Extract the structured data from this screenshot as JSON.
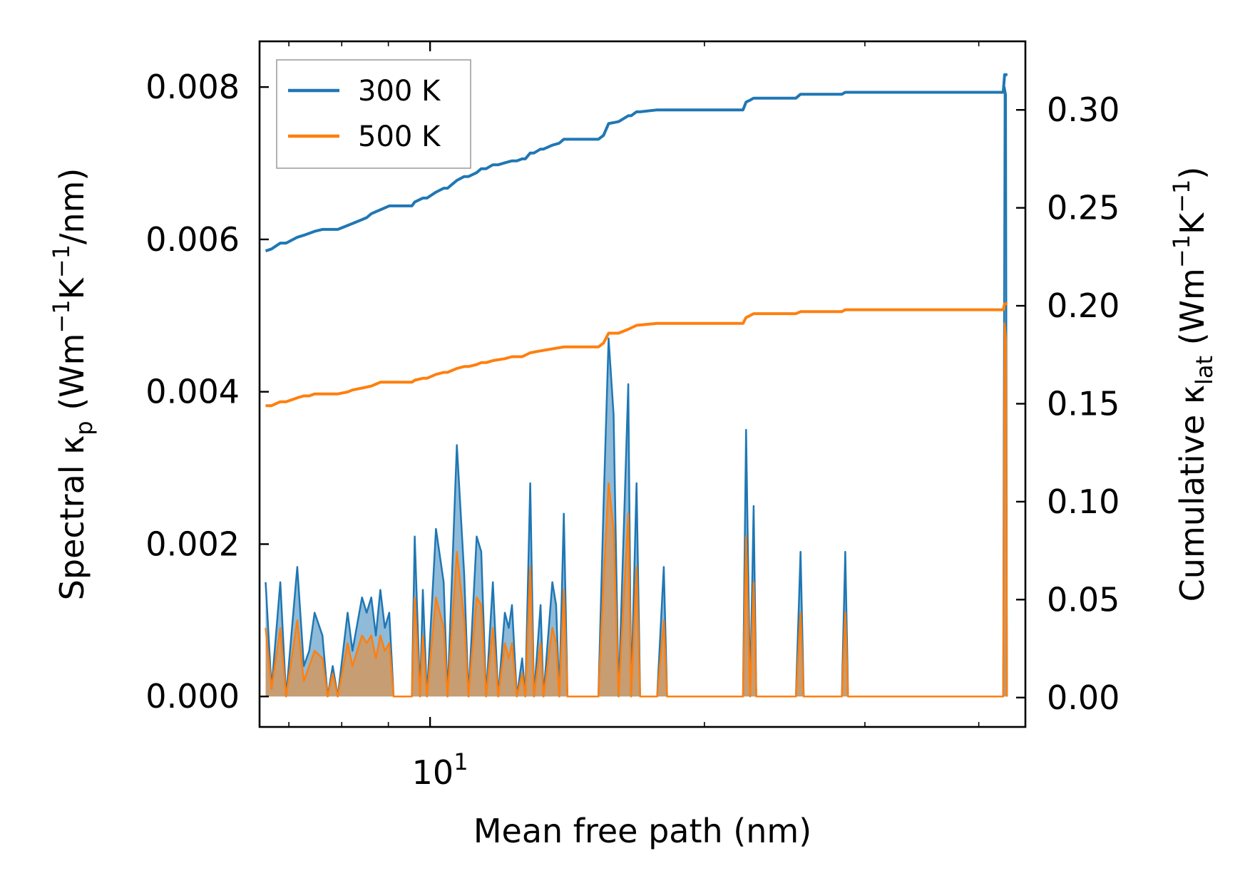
{
  "chart_data": {
    "type": "line",
    "xlabel": "Mean free path (nm)",
    "ylabel_left": {
      "main": "Spectral κ",
      "sub": "p",
      "unit_open": " (Wm",
      "sup1": "−1",
      "unit_mid": "K",
      "sup2": "−1",
      "unit_close": "/nm)"
    },
    "ylabel_right": {
      "main": "Cumulative κ",
      "sub": "lat",
      "unit_open": " (Wm",
      "sup1": "−1",
      "unit_mid": "K",
      "sup2": "−1",
      "unit_close": ")"
    },
    "x_scale": "log",
    "xlim": [
      6.5,
      45
    ],
    "x_ticks": [
      {
        "value": 10,
        "base": "10",
        "exp": "1"
      }
    ],
    "ylim_left": [
      -0.0004,
      0.0086
    ],
    "ylim_right": [
      -0.015,
      0.335
    ],
    "yticks_left": [
      "0.000",
      "0.002",
      "0.004",
      "0.006",
      "0.008"
    ],
    "yticks_right": [
      "0.00",
      "0.05",
      "0.10",
      "0.15",
      "0.20",
      "0.25",
      "0.30"
    ],
    "legend": {
      "position": "top-left",
      "entries": [
        "300 K",
        "500 K"
      ]
    },
    "colors": {
      "s300": "#1f77b4",
      "s500": "#ff7f0e"
    },
    "spectral": [
      {
        "name": "300 K",
        "points": [
          [
            6.6,
            0.0015
          ],
          [
            6.7,
            0.0001
          ],
          [
            6.85,
            0.0015
          ],
          [
            6.95,
            0
          ],
          [
            7.15,
            0.0017
          ],
          [
            7.27,
            0.0004
          ],
          [
            7.37,
            0.0006
          ],
          [
            7.47,
            0.0011
          ],
          [
            7.62,
            0.0008
          ],
          [
            7.72,
            0
          ],
          [
            7.82,
            0.0004
          ],
          [
            7.92,
            0
          ],
          [
            8.12,
            0.0011
          ],
          [
            8.22,
            0.0006
          ],
          [
            8.42,
            0.0013
          ],
          [
            8.52,
            0.0011
          ],
          [
            8.62,
            0.0013
          ],
          [
            8.72,
            0.0008
          ],
          [
            8.82,
            0.0014
          ],
          [
            8.92,
            0.0009
          ],
          [
            9.02,
            0.0011
          ],
          [
            9.12,
            0
          ],
          [
            9.55,
            0
          ],
          [
            9.62,
            0.0021
          ],
          [
            9.75,
            0
          ],
          [
            9.82,
            0.0014
          ],
          [
            9.92,
            0
          ],
          [
            10.15,
            0.0022
          ],
          [
            10.35,
            0.0015
          ],
          [
            10.45,
            0
          ],
          [
            10.7,
            0.0033
          ],
          [
            10.9,
            0.0016
          ],
          [
            11.02,
            0
          ],
          [
            11.25,
            0.0021
          ],
          [
            11.38,
            0.0019
          ],
          [
            11.52,
            0
          ],
          [
            11.72,
            0.0015
          ],
          [
            11.88,
            0
          ],
          [
            12.08,
            0.0011
          ],
          [
            12.2,
            0.0009
          ],
          [
            12.3,
            0.0012
          ],
          [
            12.45,
            0
          ],
          [
            12.62,
            0.0005
          ],
          [
            12.72,
            0
          ],
          [
            12.88,
            0.0028
          ],
          [
            13.0,
            0
          ],
          [
            13.22,
            0.0012
          ],
          [
            13.32,
            0
          ],
          [
            13.62,
            0.0015
          ],
          [
            13.75,
            0.0012
          ],
          [
            13.86,
            0
          ],
          [
            14.02,
            0.0024
          ],
          [
            14.15,
            0
          ],
          [
            15.3,
            0
          ],
          [
            15.5,
            0.0025
          ],
          [
            15.7,
            0.0047
          ],
          [
            15.9,
            0.0037
          ],
          [
            16.1,
            0
          ],
          [
            16.5,
            0.0041
          ],
          [
            16.62,
            0
          ],
          [
            16.85,
            0.0028
          ],
          [
            17.0,
            0
          ],
          [
            17.75,
            0
          ],
          [
            18.05,
            0.0017
          ],
          [
            18.2,
            0
          ],
          [
            22.05,
            0
          ],
          [
            22.22,
            0.0035
          ],
          [
            22.45,
            0
          ],
          [
            22.65,
            0.0025
          ],
          [
            22.8,
            0
          ],
          [
            25.2,
            0
          ],
          [
            25.5,
            0.0019
          ],
          [
            25.7,
            0
          ],
          [
            28.3,
            0
          ],
          [
            28.55,
            0.0019
          ],
          [
            28.75,
            0
          ],
          [
            42.55,
            0
          ],
          [
            42.7,
            0.008
          ],
          [
            42.85,
            0.0079
          ],
          [
            42.95,
            0
          ]
        ]
      },
      {
        "name": "500 K",
        "points": [
          [
            6.6,
            0.0009
          ],
          [
            6.7,
            0.0001
          ],
          [
            6.85,
            0.0009
          ],
          [
            6.95,
            0
          ],
          [
            7.15,
            0.001
          ],
          [
            7.27,
            0.0002
          ],
          [
            7.37,
            0.0004
          ],
          [
            7.47,
            0.0006
          ],
          [
            7.62,
            0.0005
          ],
          [
            7.72,
            0
          ],
          [
            7.82,
            0.0003
          ],
          [
            7.92,
            0
          ],
          [
            8.12,
            0.0007
          ],
          [
            8.22,
            0.0004
          ],
          [
            8.42,
            0.0008
          ],
          [
            8.52,
            0.0007
          ],
          [
            8.62,
            0.0008
          ],
          [
            8.72,
            0.0005
          ],
          [
            8.82,
            0.0008
          ],
          [
            8.92,
            0.0006
          ],
          [
            9.02,
            0.0007
          ],
          [
            9.12,
            0
          ],
          [
            9.55,
            0
          ],
          [
            9.62,
            0.0013
          ],
          [
            9.75,
            0
          ],
          [
            9.82,
            0.0008
          ],
          [
            9.92,
            0
          ],
          [
            10.15,
            0.0013
          ],
          [
            10.35,
            0.0009
          ],
          [
            10.45,
            0
          ],
          [
            10.7,
            0.0019
          ],
          [
            10.9,
            0.001
          ],
          [
            11.02,
            0
          ],
          [
            11.25,
            0.0013
          ],
          [
            11.38,
            0.0012
          ],
          [
            11.52,
            0
          ],
          [
            11.72,
            0.0009
          ],
          [
            11.88,
            0
          ],
          [
            12.08,
            0.0007
          ],
          [
            12.2,
            0.0005
          ],
          [
            12.3,
            0.0007
          ],
          [
            12.45,
            0
          ],
          [
            12.62,
            0.0003
          ],
          [
            12.72,
            0
          ],
          [
            12.88,
            0.0017
          ],
          [
            13.0,
            0
          ],
          [
            13.22,
            0.0007
          ],
          [
            13.32,
            0
          ],
          [
            13.62,
            0.0009
          ],
          [
            13.75,
            0.0007
          ],
          [
            13.86,
            0
          ],
          [
            14.02,
            0.0014
          ],
          [
            14.15,
            0
          ],
          [
            15.3,
            0
          ],
          [
            15.5,
            0.0015
          ],
          [
            15.7,
            0.0028
          ],
          [
            15.9,
            0.0022
          ],
          [
            16.1,
            0
          ],
          [
            16.5,
            0.0024
          ],
          [
            16.62,
            0
          ],
          [
            16.85,
            0.0017
          ],
          [
            17.0,
            0
          ],
          [
            17.75,
            0
          ],
          [
            18.05,
            0.001
          ],
          [
            18.2,
            0
          ],
          [
            22.05,
            0
          ],
          [
            22.22,
            0.0021
          ],
          [
            22.45,
            0
          ],
          [
            22.65,
            0.0015
          ],
          [
            22.8,
            0
          ],
          [
            25.2,
            0
          ],
          [
            25.5,
            0.0011
          ],
          [
            25.7,
            0
          ],
          [
            28.3,
            0
          ],
          [
            28.55,
            0.0011
          ],
          [
            28.75,
            0
          ],
          [
            42.55,
            0
          ],
          [
            42.7,
            0.0049
          ],
          [
            42.85,
            0.0047
          ],
          [
            42.95,
            0
          ]
        ]
      }
    ],
    "cumulative": [
      {
        "name": "300 K",
        "points": [
          [
            6.6,
            0.228
          ],
          [
            6.7,
            0.229
          ],
          [
            6.85,
            0.232
          ],
          [
            6.95,
            0.232
          ],
          [
            7.15,
            0.235
          ],
          [
            7.27,
            0.236
          ],
          [
            7.37,
            0.237
          ],
          [
            7.47,
            0.238
          ],
          [
            7.62,
            0.239
          ],
          [
            7.72,
            0.239
          ],
          [
            7.82,
            0.239
          ],
          [
            7.92,
            0.239
          ],
          [
            8.12,
            0.241
          ],
          [
            8.22,
            0.242
          ],
          [
            8.42,
            0.244
          ],
          [
            8.52,
            0.245
          ],
          [
            8.62,
            0.247
          ],
          [
            8.72,
            0.248
          ],
          [
            8.82,
            0.249
          ],
          [
            9.02,
            0.251
          ],
          [
            9.12,
            0.251
          ],
          [
            9.55,
            0.251
          ],
          [
            9.62,
            0.253
          ],
          [
            9.82,
            0.255
          ],
          [
            9.92,
            0.255
          ],
          [
            10.15,
            0.258
          ],
          [
            10.35,
            0.26
          ],
          [
            10.45,
            0.26
          ],
          [
            10.7,
            0.264
          ],
          [
            10.9,
            0.266
          ],
          [
            11.02,
            0.266
          ],
          [
            11.25,
            0.268
          ],
          [
            11.38,
            0.27
          ],
          [
            11.52,
            0.27
          ],
          [
            11.72,
            0.272
          ],
          [
            11.88,
            0.272
          ],
          [
            12.08,
            0.273
          ],
          [
            12.3,
            0.274
          ],
          [
            12.45,
            0.274
          ],
          [
            12.62,
            0.275
          ],
          [
            12.72,
            0.275
          ],
          [
            12.88,
            0.278
          ],
          [
            13.0,
            0.278
          ],
          [
            13.22,
            0.28
          ],
          [
            13.32,
            0.28
          ],
          [
            13.62,
            0.282
          ],
          [
            13.86,
            0.283
          ],
          [
            14.02,
            0.285
          ],
          [
            15.3,
            0.285
          ],
          [
            15.5,
            0.287
          ],
          [
            15.7,
            0.293
          ],
          [
            16.1,
            0.294
          ],
          [
            16.5,
            0.297
          ],
          [
            16.62,
            0.297
          ],
          [
            16.85,
            0.299
          ],
          [
            17.0,
            0.299
          ],
          [
            17.75,
            0.3
          ],
          [
            22.05,
            0.3
          ],
          [
            22.22,
            0.304
          ],
          [
            22.45,
            0.305
          ],
          [
            22.65,
            0.306
          ],
          [
            25.2,
            0.306
          ],
          [
            25.5,
            0.308
          ],
          [
            28.3,
            0.308
          ],
          [
            28.55,
            0.309
          ],
          [
            42.55,
            0.309
          ],
          [
            42.7,
            0.318
          ],
          [
            43.0,
            0.318
          ]
        ]
      },
      {
        "name": "500 K",
        "points": [
          [
            6.6,
            0.149
          ],
          [
            6.7,
            0.149
          ],
          [
            6.85,
            0.151
          ],
          [
            6.95,
            0.151
          ],
          [
            7.15,
            0.153
          ],
          [
            7.27,
            0.154
          ],
          [
            7.37,
            0.154
          ],
          [
            7.47,
            0.155
          ],
          [
            7.62,
            0.155
          ],
          [
            7.72,
            0.155
          ],
          [
            7.82,
            0.155
          ],
          [
            7.92,
            0.155
          ],
          [
            8.12,
            0.156
          ],
          [
            8.22,
            0.157
          ],
          [
            8.42,
            0.158
          ],
          [
            8.62,
            0.159
          ],
          [
            8.72,
            0.16
          ],
          [
            8.82,
            0.161
          ],
          [
            9.02,
            0.161
          ],
          [
            9.12,
            0.161
          ],
          [
            9.55,
            0.161
          ],
          [
            9.62,
            0.162
          ],
          [
            9.82,
            0.163
          ],
          [
            9.92,
            0.163
          ],
          [
            10.15,
            0.165
          ],
          [
            10.35,
            0.166
          ],
          [
            10.45,
            0.166
          ],
          [
            10.7,
            0.168
          ],
          [
            10.9,
            0.169
          ],
          [
            11.02,
            0.169
          ],
          [
            11.25,
            0.17
          ],
          [
            11.38,
            0.171
          ],
          [
            11.52,
            0.171
          ],
          [
            11.72,
            0.172
          ],
          [
            12.08,
            0.173
          ],
          [
            12.3,
            0.174
          ],
          [
            12.62,
            0.174
          ],
          [
            12.88,
            0.176
          ],
          [
            13.22,
            0.177
          ],
          [
            13.62,
            0.178
          ],
          [
            14.02,
            0.179
          ],
          [
            15.3,
            0.179
          ],
          [
            15.5,
            0.181
          ],
          [
            15.7,
            0.186
          ],
          [
            16.1,
            0.186
          ],
          [
            16.5,
            0.188
          ],
          [
            16.85,
            0.19
          ],
          [
            17.75,
            0.191
          ],
          [
            22.05,
            0.191
          ],
          [
            22.22,
            0.194
          ],
          [
            22.45,
            0.195
          ],
          [
            22.65,
            0.196
          ],
          [
            25.2,
            0.196
          ],
          [
            25.5,
            0.197
          ],
          [
            28.3,
            0.197
          ],
          [
            28.55,
            0.198
          ],
          [
            42.55,
            0.198
          ],
          [
            42.7,
            0.201
          ],
          [
            43.0,
            0.201
          ]
        ]
      }
    ]
  }
}
